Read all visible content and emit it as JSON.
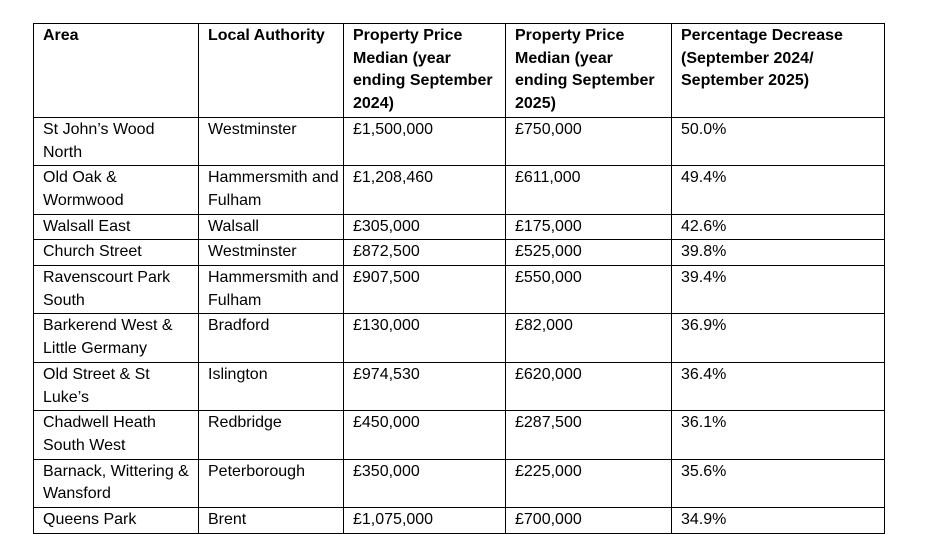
{
  "table": {
    "headers": [
      "Area",
      "Local Authority",
      "Property Price Median (year ending September 2024)",
      "Property Price Median (year ending September 2025)",
      "Percentage Decrease (September 2024/ September 2025)"
    ],
    "rows": [
      [
        "St John’s Wood North",
        "Westminster",
        "£1,500,000",
        "£750,000",
        "50.0%"
      ],
      [
        "Old Oak & Wormwood",
        "Hammersmith and Fulham",
        "£1,208,460",
        "£611,000",
        "49.4%"
      ],
      [
        "Walsall East",
        "Walsall",
        "£305,000",
        "£175,000",
        "42.6%"
      ],
      [
        "Church Street",
        "Westminster",
        "£872,500",
        "£525,000",
        "39.8%"
      ],
      [
        "Ravenscourt Park South",
        "Hammersmith and Fulham",
        "£907,500",
        "£550,000",
        "39.4%"
      ],
      [
        "Barkerend West & Little Germany",
        "Bradford",
        "£130,000",
        "£82,000",
        "36.9%"
      ],
      [
        "Old Street & St Luke’s",
        "Islington",
        "£974,530",
        "£620,000",
        "36.4%"
      ],
      [
        "Chadwell Heath South West",
        "Redbridge",
        "£450,000",
        "£287,500",
        "36.1%"
      ],
      [
        "Barnack, Wittering & Wansford",
        "Peterborough",
        "£350,000",
        "£225,000",
        "35.6%"
      ],
      [
        "Queens Park",
        "Brent",
        "£1,075,000",
        "£700,000",
        "34.9%"
      ]
    ]
  }
}
